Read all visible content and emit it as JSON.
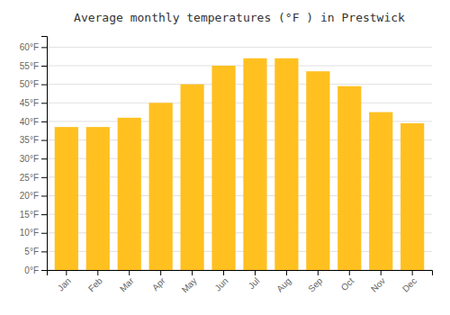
{
  "chart_data": {
    "type": "bar",
    "title": "Average monthly temperatures (°F ) in Prestwick",
    "categories": [
      "Jan",
      "Feb",
      "Mar",
      "Apr",
      "May",
      "Jun",
      "Jul",
      "Aug",
      "Sep",
      "Oct",
      "Nov",
      "Dec"
    ],
    "values": [
      38.5,
      38.5,
      41.0,
      45.0,
      50.0,
      55.0,
      57.0,
      57.0,
      53.5,
      49.5,
      42.5,
      39.5
    ],
    "color": "#FFC020",
    "ylim": [
      0,
      63
    ],
    "yticks": [
      {
        "value": 0,
        "label": "0°F"
      },
      {
        "value": 5,
        "label": "5°F"
      },
      {
        "value": 10,
        "label": "10°F"
      },
      {
        "value": 15,
        "label": "15°F"
      },
      {
        "value": 20,
        "label": "20°F"
      },
      {
        "value": 25,
        "label": "25°F"
      },
      {
        "value": 30,
        "label": "30°F"
      },
      {
        "value": 35,
        "label": "35°F"
      },
      {
        "value": 40,
        "label": "40°F"
      },
      {
        "value": 45,
        "label": "45°F"
      },
      {
        "value": 50,
        "label": "50°F"
      },
      {
        "value": 55,
        "label": "55°F"
      },
      {
        "value": 60,
        "label": "60°F"
      }
    ],
    "grid": true
  }
}
